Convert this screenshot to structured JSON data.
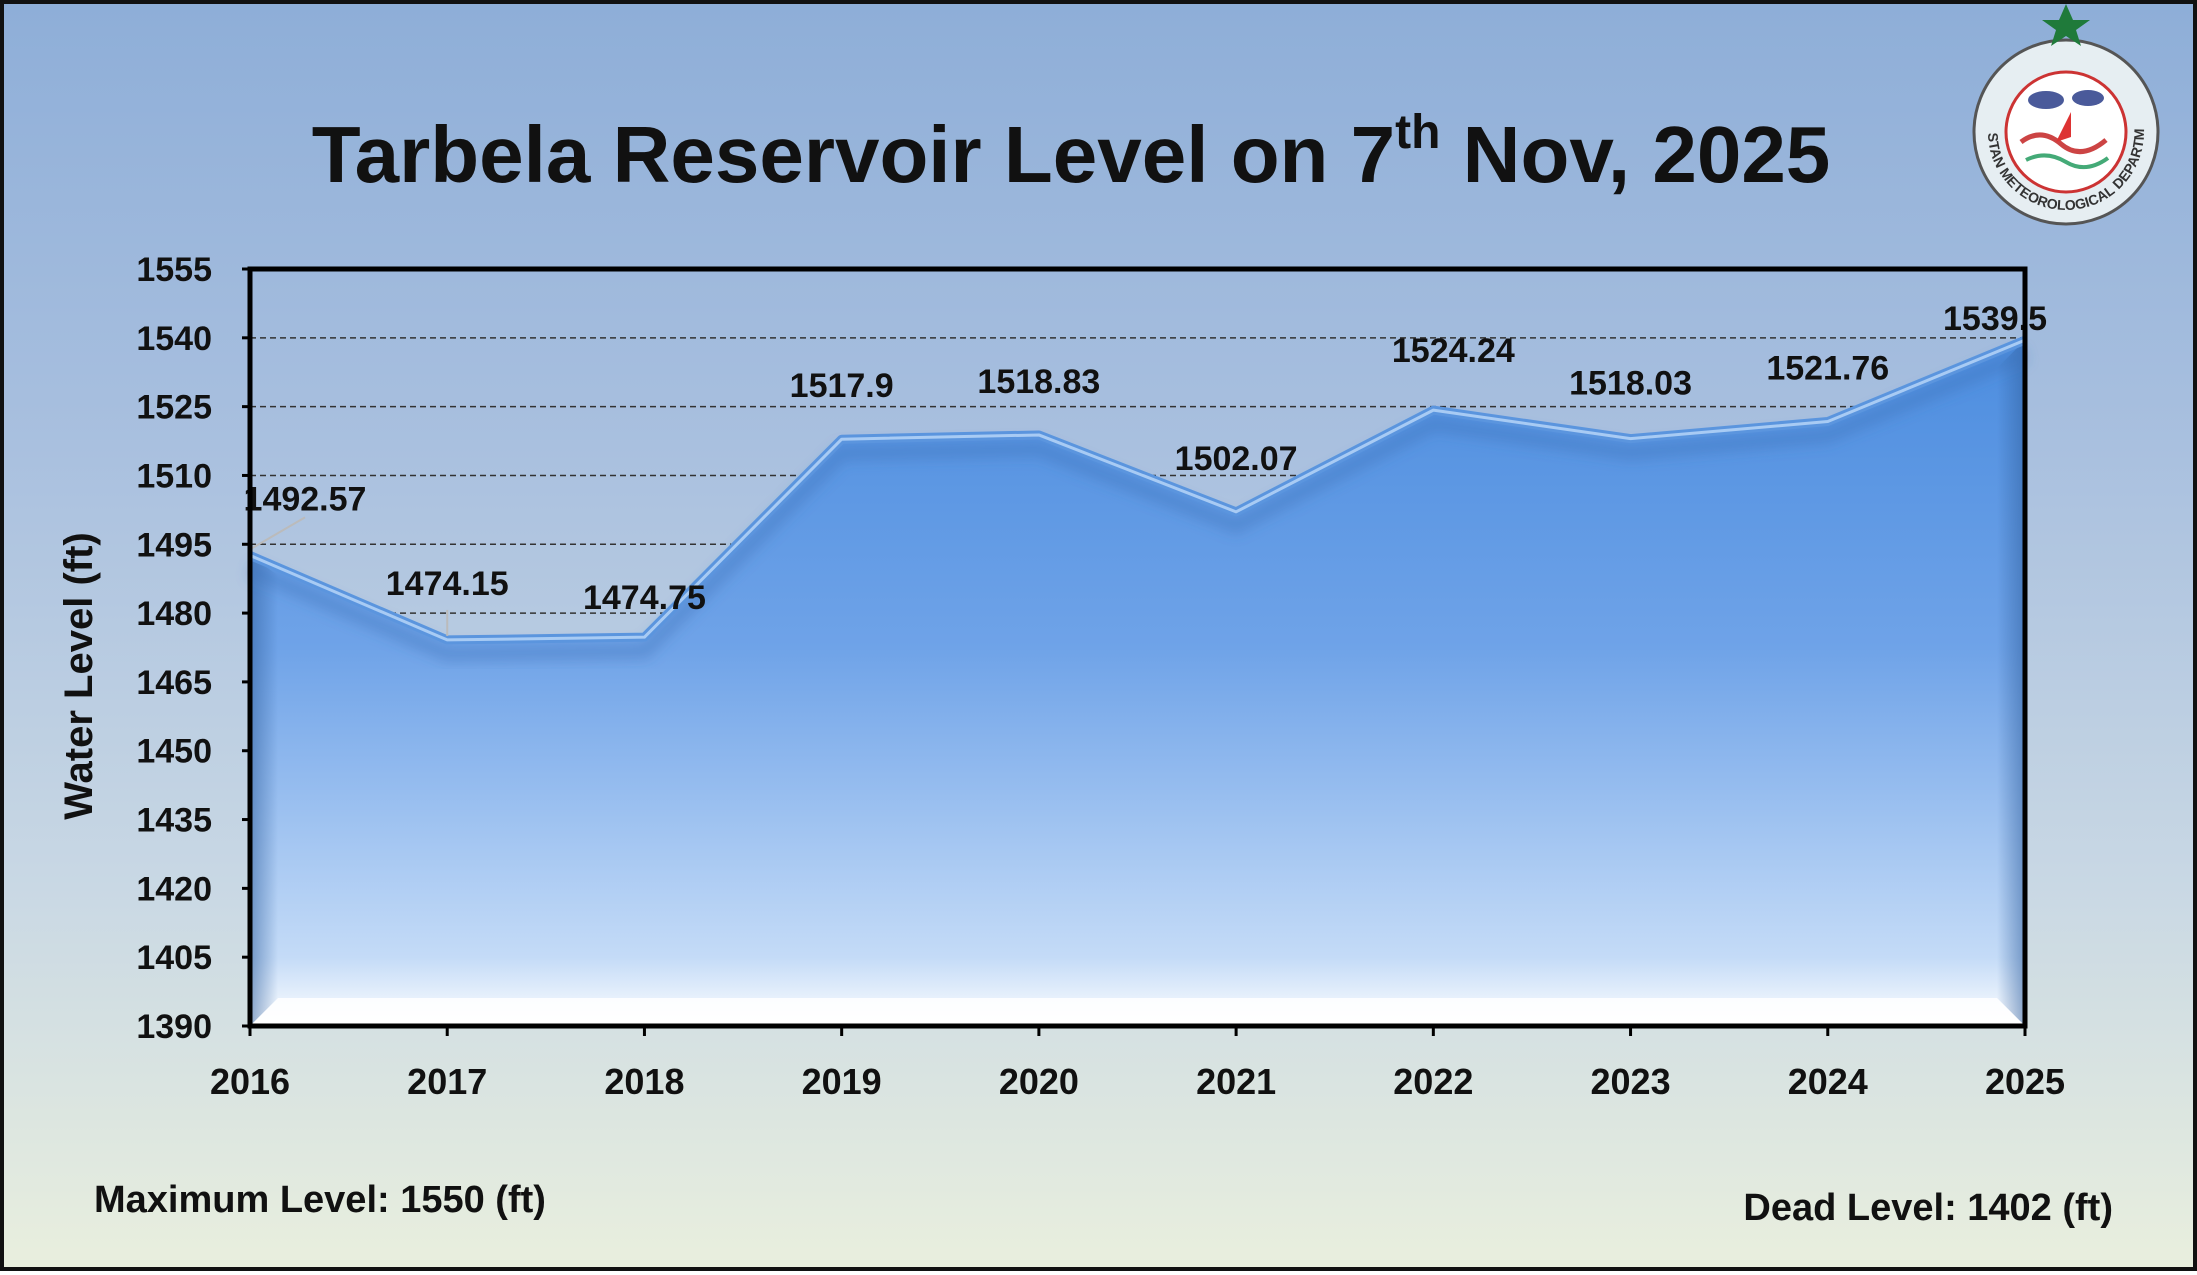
{
  "chart_data": {
    "type": "area",
    "title": {
      "main": "Tarbela Reservoir Level on 7",
      "superscript": "th",
      "suffix": " Nov, 2025"
    },
    "ylabel": "Water Level (ft)",
    "xlabel": "",
    "categories": [
      "2016",
      "2017",
      "2018",
      "2019",
      "2020",
      "2021",
      "2022",
      "2023",
      "2024",
      "2025"
    ],
    "values": [
      1492.57,
      1474.15,
      1474.75,
      1517.9,
      1518.83,
      1502.07,
      1524.24,
      1518.03,
      1521.76,
      1539.5
    ],
    "data_labels": [
      "1492.57",
      "1474.15",
      "1474.75",
      "1517.9",
      "1518.83",
      "1502.07",
      "1524.24",
      "1518.03",
      "1521.76",
      "1539.5"
    ],
    "ylim": [
      1390,
      1555
    ],
    "yticks": [
      1390,
      1405,
      1420,
      1435,
      1450,
      1465,
      1480,
      1495,
      1510,
      1525,
      1540,
      1555
    ],
    "grid": "dashed horizontal",
    "colors": {
      "fill_top": "#4f8fdf",
      "fill_bottom": "#d8e8fb",
      "line": "#6aa2e6"
    }
  },
  "footer": {
    "max_level": "Maximum Level: 1550 (ft)",
    "dead_level": "Dead Level: 1402 (ft)"
  },
  "logo": {
    "text": "PAKISTAN METEOROLOGICAL DEPARTMENT"
  }
}
